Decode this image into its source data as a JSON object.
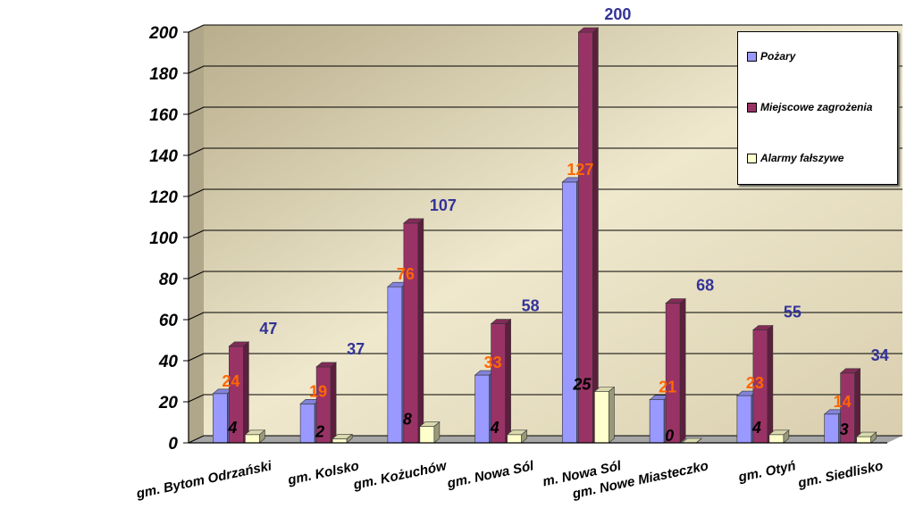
{
  "chart_data": {
    "type": "bar",
    "categories": [
      "gm. Bytom  Odrzański",
      "gm. Kolsko",
      "gm. Kożuchów",
      "gm. Nowa Sól",
      "m. Nowa Sól",
      "gm. Nowe Miasteczko",
      "gm. Otyń",
      "gm. Siedlisko"
    ],
    "series": [
      {
        "name": "Pożary",
        "values": [
          24,
          19,
          76,
          33,
          127,
          21,
          23,
          14
        ],
        "color": "#9999ff",
        "label_color": "#ff6600"
      },
      {
        "name": "Miejscowe zagrożenia",
        "values": [
          47,
          37,
          107,
          58,
          200,
          68,
          55,
          34
        ],
        "color": "#993366",
        "label_color": "#333399"
      },
      {
        "name": "Alarmy fałszywe",
        "values": [
          4,
          2,
          8,
          4,
          25,
          0,
          4,
          3
        ],
        "color": "#ffffcc",
        "label_color": "#000000"
      }
    ],
    "ylim": [
      0,
      200
    ],
    "yticks": [
      "0",
      "20",
      "40",
      "60",
      "80",
      "100",
      "120",
      "140",
      "160",
      "180",
      "200"
    ],
    "grid": true,
    "legend_position": "right"
  }
}
